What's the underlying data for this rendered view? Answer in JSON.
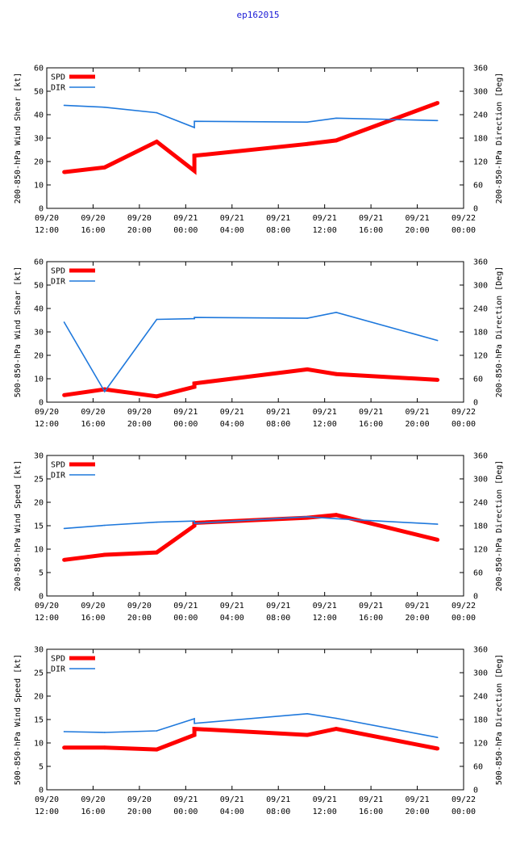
{
  "title": "ep162015",
  "colors": {
    "spd": "#ff0000",
    "dir": "#1e78dc",
    "title": "#1a1ad6"
  },
  "chart_data": [
    {
      "type": "line",
      "ylabel_left": "200-850-hPa Wind Shear [kt]",
      "ylabel_right": "200-850-hPa Direction [Deg]",
      "ylim_left": [
        0,
        60
      ],
      "yticks_left": [
        0,
        10,
        20,
        30,
        40,
        50,
        60
      ],
      "ylim_right": [
        0,
        360
      ],
      "yticks_right": [
        0,
        60,
        120,
        180,
        240,
        300,
        360
      ],
      "xlim_hours": [
        0,
        36
      ],
      "xticks": [
        {
          "h": 0,
          "date": "09/20",
          "time": "12:00"
        },
        {
          "h": 4,
          "date": "09/20",
          "time": "16:00"
        },
        {
          "h": 8,
          "date": "09/20",
          "time": "20:00"
        },
        {
          "h": 12,
          "date": "09/21",
          "time": "00:00"
        },
        {
          "h": 16,
          "date": "09/21",
          "time": "04:00"
        },
        {
          "h": 20,
          "date": "09/21",
          "time": "08:00"
        },
        {
          "h": 24,
          "date": "09/21",
          "time": "12:00"
        },
        {
          "h": 28,
          "date": "09/21",
          "time": "16:00"
        },
        {
          "h": 32,
          "date": "09/21",
          "time": "20:00"
        },
        {
          "h": 36,
          "date": "09/22",
          "time": "00:00"
        }
      ],
      "series": [
        {
          "name": "SPD",
          "axis": "left",
          "x": [
            1.5,
            5,
            9.5,
            12.75,
            12.75,
            22.5,
            25,
            33.75
          ],
          "values": [
            15.5,
            17.5,
            28.5,
            16,
            22.5,
            27.5,
            29,
            45
          ]
        },
        {
          "name": "DIR",
          "axis": "right",
          "x": [
            1.5,
            5,
            9.5,
            12.75,
            12.75,
            22.5,
            25,
            33.75
          ],
          "values": [
            264,
            259,
            245,
            207,
            223,
            221,
            231,
            225
          ]
        }
      ]
    },
    {
      "type": "line",
      "ylabel_left": "500-850-hPa Wind Shear [kt]",
      "ylabel_right": "200-850-hPa Direction [Deg]",
      "ylim_left": [
        0,
        60
      ],
      "yticks_left": [
        0,
        10,
        20,
        30,
        40,
        50,
        60
      ],
      "ylim_right": [
        0,
        360
      ],
      "yticks_right": [
        0,
        60,
        120,
        180,
        240,
        300,
        360
      ],
      "xlim_hours": [
        0,
        36
      ],
      "xticks": [
        {
          "h": 0,
          "date": "09/20",
          "time": "12:00"
        },
        {
          "h": 4,
          "date": "09/20",
          "time": "16:00"
        },
        {
          "h": 8,
          "date": "09/20",
          "time": "20:00"
        },
        {
          "h": 12,
          "date": "09/21",
          "time": "00:00"
        },
        {
          "h": 16,
          "date": "09/21",
          "time": "04:00"
        },
        {
          "h": 20,
          "date": "09/21",
          "time": "08:00"
        },
        {
          "h": 24,
          "date": "09/21",
          "time": "12:00"
        },
        {
          "h": 28,
          "date": "09/21",
          "time": "16:00"
        },
        {
          "h": 32,
          "date": "09/21",
          "time": "20:00"
        },
        {
          "h": 36,
          "date": "09/22",
          "time": "00:00"
        }
      ],
      "series": [
        {
          "name": "SPD",
          "axis": "left",
          "x": [
            1.5,
            5,
            9.5,
            12.75,
            12.75,
            22.5,
            25,
            33.75
          ],
          "values": [
            3,
            5.5,
            2.5,
            6.5,
            8,
            14,
            12,
            9.5
          ]
        },
        {
          "name": "DIR",
          "axis": "right",
          "x": [
            1.5,
            5,
            9.5,
            12.75,
            12.75,
            22.5,
            25,
            33.75
          ],
          "values": [
            205,
            27,
            212,
            214,
            217,
            215,
            230,
            158
          ]
        }
      ]
    },
    {
      "type": "line",
      "ylabel_left": "200-850-hPa Wind Speed [kt]",
      "ylabel_right": "200-850-hPa Direction [Deg]",
      "ylim_left": [
        0,
        30
      ],
      "yticks_left": [
        0,
        5,
        10,
        15,
        20,
        25,
        30
      ],
      "ylim_right": [
        0,
        360
      ],
      "yticks_right": [
        0,
        60,
        120,
        180,
        240,
        300,
        360
      ],
      "xlim_hours": [
        0,
        36
      ],
      "xticks": [
        {
          "h": 0,
          "date": "09/20",
          "time": "12:00"
        },
        {
          "h": 4,
          "date": "09/20",
          "time": "16:00"
        },
        {
          "h": 8,
          "date": "09/20",
          "time": "20:00"
        },
        {
          "h": 12,
          "date": "09/21",
          "time": "00:00"
        },
        {
          "h": 16,
          "date": "09/21",
          "time": "04:00"
        },
        {
          "h": 20,
          "date": "09/21",
          "time": "08:00"
        },
        {
          "h": 24,
          "date": "09/21",
          "time": "12:00"
        },
        {
          "h": 28,
          "date": "09/21",
          "time": "16:00"
        },
        {
          "h": 32,
          "date": "09/21",
          "time": "20:00"
        },
        {
          "h": 36,
          "date": "09/22",
          "time": "00:00"
        }
      ],
      "series": [
        {
          "name": "SPD",
          "axis": "left",
          "x": [
            1.5,
            5,
            9.5,
            12.75,
            12.75,
            22.5,
            25,
            33.75
          ],
          "values": [
            7.7,
            8.8,
            9.3,
            15,
            15.6,
            16.7,
            17.3,
            12
          ]
        },
        {
          "name": "DIR",
          "axis": "right",
          "x": [
            1.5,
            5,
            9.5,
            12.75,
            12.75,
            22.5,
            25,
            33.75
          ],
          "values": [
            173,
            181,
            189,
            192,
            186,
            203,
            198,
            184
          ]
        }
      ]
    },
    {
      "type": "line",
      "ylabel_left": "500-850-hPa Wind Speed [kt]",
      "ylabel_right": "500-850-hPa Direction [Deg]",
      "ylim_left": [
        0,
        30
      ],
      "yticks_left": [
        0,
        5,
        10,
        15,
        20,
        25,
        30
      ],
      "ylim_right": [
        0,
        360
      ],
      "yticks_right": [
        0,
        60,
        120,
        180,
        240,
        300,
        360
      ],
      "xlim_hours": [
        0,
        36
      ],
      "xticks": [
        {
          "h": 0,
          "date": "09/20",
          "time": "12:00"
        },
        {
          "h": 4,
          "date": "09/20",
          "time": "16:00"
        },
        {
          "h": 8,
          "date": "09/20",
          "time": "20:00"
        },
        {
          "h": 12,
          "date": "09/21",
          "time": "00:00"
        },
        {
          "h": 16,
          "date": "09/21",
          "time": "04:00"
        },
        {
          "h": 20,
          "date": "09/21",
          "time": "08:00"
        },
        {
          "h": 24,
          "date": "09/21",
          "time": "12:00"
        },
        {
          "h": 28,
          "date": "09/21",
          "time": "16:00"
        },
        {
          "h": 32,
          "date": "09/21",
          "time": "20:00"
        },
        {
          "h": 36,
          "date": "09/22",
          "time": "00:00"
        }
      ],
      "series": [
        {
          "name": "SPD",
          "axis": "left",
          "x": [
            1.5,
            5,
            9.5,
            12.75,
            12.75,
            22.5,
            25,
            33.75
          ],
          "values": [
            9,
            9,
            8.6,
            11.7,
            13,
            11.7,
            13,
            8.8
          ]
        },
        {
          "name": "DIR",
          "axis": "right",
          "x": [
            1.5,
            5,
            9.5,
            12.75,
            12.75,
            22.5,
            25,
            33.75
          ],
          "values": [
            149,
            147,
            151,
            182,
            170,
            195,
            183,
            134
          ]
        }
      ]
    }
  ]
}
